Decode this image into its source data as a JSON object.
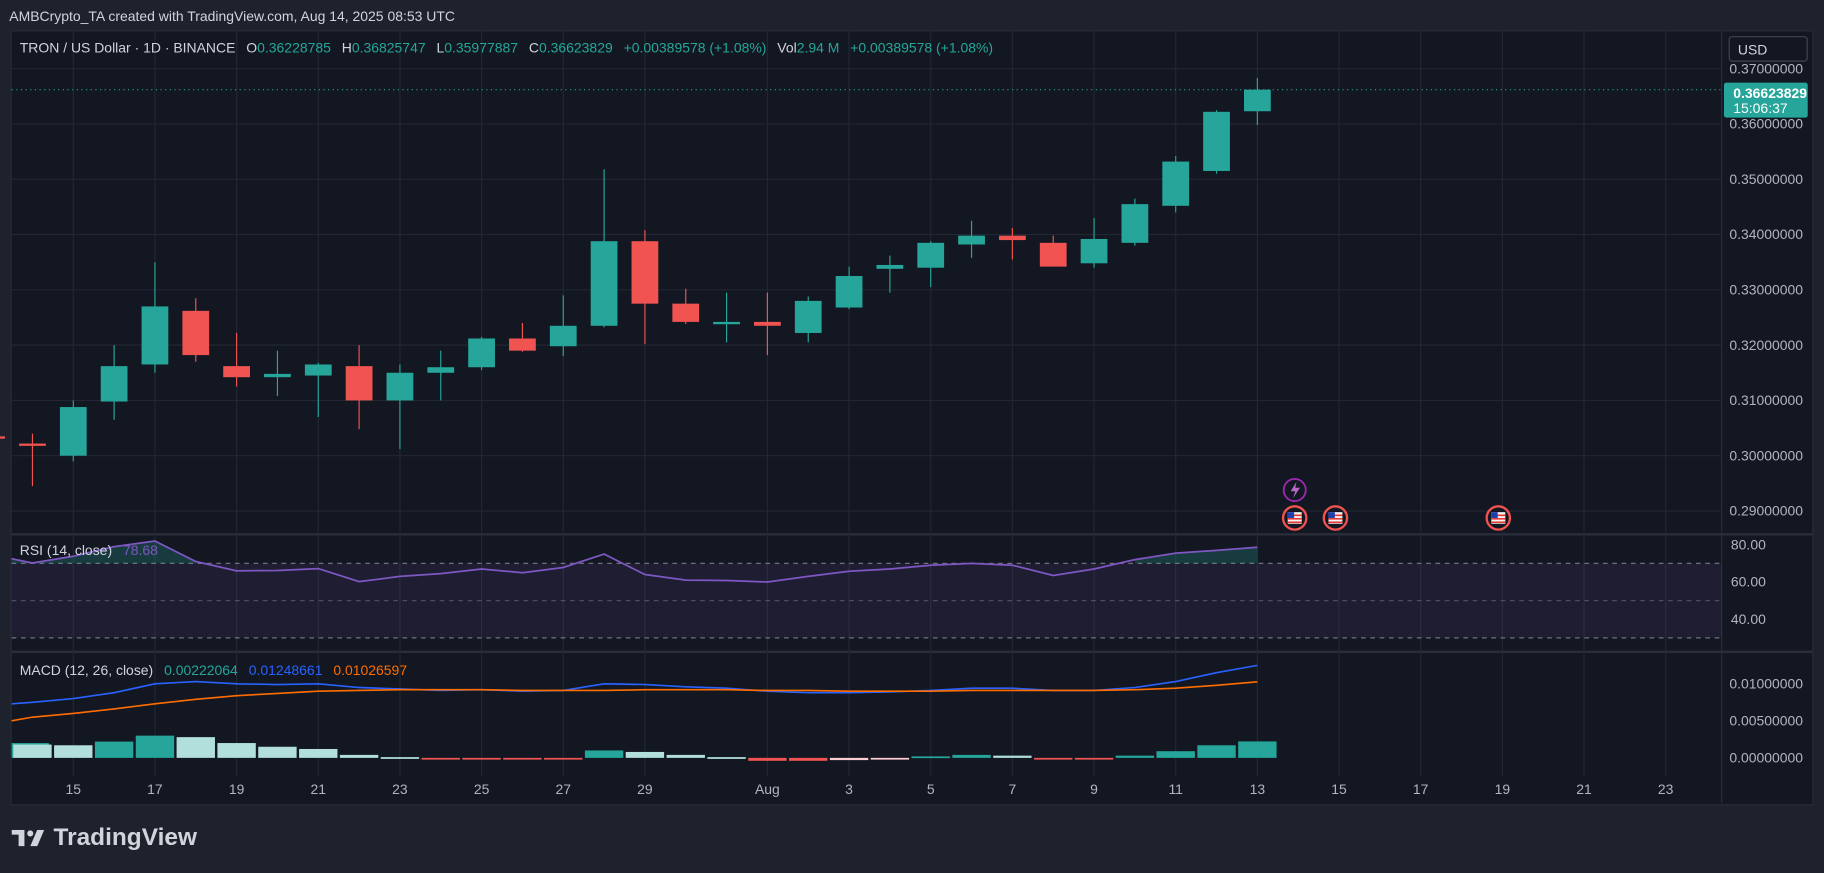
{
  "header_text": "AMBCrypto_TA created with TradingView.com, Aug 14, 2025 08:53 UTC",
  "main_legend": {
    "symbol": "TRON / US Dollar · 1D · BINANCE",
    "o_label": "O",
    "o": "0.36228785",
    "h_label": "H",
    "h": "0.36825747",
    "l_label": "L",
    "l": "0.35977887",
    "c_label": "C",
    "c": "0.36623829",
    "change": "+0.00389578 (+1.08%)",
    "vol_label": "Vol",
    "vol": "2.94 M",
    "vol_change": "+0.00389578 (+1.08%)"
  },
  "currency_button": "USD",
  "last_price_tag": {
    "price": "0.36623829",
    "countdown": "15:06:37"
  },
  "colors": {
    "up": "#26a69a",
    "down": "#f05350",
    "rsi": "#7e57c2",
    "macd": "#2962ff",
    "signal": "#ff6d00",
    "text": "#b2b5be",
    "bg": "#131722",
    "grid": "#232733"
  },
  "icons": [
    "us-flag-event-icon",
    "lightning-event-icon",
    "tradingview-logo-icon"
  ],
  "footer_logo_text": "TradingView",
  "rsi_legend": {
    "label": "RSI (14, close)",
    "value": "78.68"
  },
  "macd_legend": {
    "label": "MACD (12, 26, close)",
    "hist": "0.00222064",
    "macd": "0.01248661",
    "signal": "0.01026597"
  },
  "chart_data": [
    {
      "type": "candlestick",
      "title": "TRON / US Dollar · 1D · BINANCE",
      "ylim": [
        0.286,
        0.374
      ],
      "y_ticks": [
        "0.37000000",
        "0.36000000",
        "0.35000000",
        "0.34000000",
        "0.33000000",
        "0.32000000",
        "0.31000000",
        "0.30000000",
        "0.29000000"
      ],
      "x_ticks": [
        {
          "day": 15,
          "label": "15"
        },
        {
          "day": 17,
          "label": "17"
        },
        {
          "day": 19,
          "label": "19"
        },
        {
          "day": 21,
          "label": "21"
        },
        {
          "day": 23,
          "label": "23"
        },
        {
          "day": 25,
          "label": "25"
        },
        {
          "day": 27,
          "label": "27"
        },
        {
          "day": 29,
          "label": "29"
        },
        {
          "day": 32,
          "label": "Aug"
        },
        {
          "day": 34,
          "label": "3"
        },
        {
          "day": 36,
          "label": "5"
        },
        {
          "day": 38,
          "label": "7"
        },
        {
          "day": 40,
          "label": "9"
        },
        {
          "day": 42,
          "label": "11"
        },
        {
          "day": 44,
          "label": "13"
        },
        {
          "day": 46,
          "label": "15"
        },
        {
          "day": 48,
          "label": "17"
        },
        {
          "day": 50,
          "label": "19"
        },
        {
          "day": 52,
          "label": "21"
        },
        {
          "day": 54,
          "label": "23"
        }
      ],
      "candles": [
        {
          "d": "Jul 13",
          "day": 13,
          "o": 0.3035,
          "h": 0.3065,
          "l": 0.299,
          "c": 0.3032
        },
        {
          "d": "Jul 14",
          "day": 14,
          "o": 0.3022,
          "h": 0.304,
          "l": 0.2945,
          "c": 0.3018
        },
        {
          "d": "Jul 15",
          "day": 15,
          "o": 0.3,
          "h": 0.31,
          "l": 0.299,
          "c": 0.3088
        },
        {
          "d": "Jul 16",
          "day": 16,
          "o": 0.3098,
          "h": 0.32,
          "l": 0.3065,
          "c": 0.3162
        },
        {
          "d": "Jul 17",
          "day": 17,
          "o": 0.3165,
          "h": 0.335,
          "l": 0.315,
          "c": 0.327
        },
        {
          "d": "Jul 18",
          "day": 18,
          "o": 0.3262,
          "h": 0.3285,
          "l": 0.317,
          "c": 0.3182
        },
        {
          "d": "Jul 19",
          "day": 19,
          "o": 0.3162,
          "h": 0.3222,
          "l": 0.3125,
          "c": 0.3142
        },
        {
          "d": "Jul 20",
          "day": 20,
          "o": 0.3142,
          "h": 0.319,
          "l": 0.3108,
          "c": 0.3148
        },
        {
          "d": "Jul 21",
          "day": 21,
          "o": 0.3145,
          "h": 0.3168,
          "l": 0.307,
          "c": 0.3165
        },
        {
          "d": "Jul 22",
          "day": 22,
          "o": 0.3162,
          "h": 0.32,
          "l": 0.3048,
          "c": 0.31
        },
        {
          "d": "Jul 23",
          "day": 23,
          "o": 0.31,
          "h": 0.3165,
          "l": 0.3012,
          "c": 0.315
        },
        {
          "d": "Jul 24",
          "day": 24,
          "o": 0.315,
          "h": 0.319,
          "l": 0.31,
          "c": 0.316
        },
        {
          "d": "Jul 25",
          "day": 25,
          "o": 0.316,
          "h": 0.3215,
          "l": 0.3155,
          "c": 0.3212
        },
        {
          "d": "Jul 26",
          "day": 26,
          "o": 0.3212,
          "h": 0.324,
          "l": 0.3188,
          "c": 0.319
        },
        {
          "d": "Jul 27",
          "day": 27,
          "o": 0.3198,
          "h": 0.329,
          "l": 0.318,
          "c": 0.3235
        },
        {
          "d": "Jul 28",
          "day": 28,
          "o": 0.3235,
          "h": 0.3518,
          "l": 0.3232,
          "c": 0.3388
        },
        {
          "d": "Jul 29",
          "day": 29,
          "o": 0.3388,
          "h": 0.3408,
          "l": 0.3202,
          "c": 0.3275
        },
        {
          "d": "Jul 30",
          "day": 30,
          "o": 0.3275,
          "h": 0.3302,
          "l": 0.3238,
          "c": 0.3242
        },
        {
          "d": "Jul 31",
          "day": 31,
          "o": 0.3242,
          "h": 0.3295,
          "l": 0.3205,
          "c": 0.3242
        },
        {
          "d": "Aug 1",
          "day": 32,
          "o": 0.3242,
          "h": 0.3295,
          "l": 0.3182,
          "c": 0.3235
        },
        {
          "d": "Aug 2",
          "day": 33,
          "o": 0.3222,
          "h": 0.3288,
          "l": 0.3205,
          "c": 0.328
        },
        {
          "d": "Aug 3",
          "day": 34,
          "o": 0.3268,
          "h": 0.3342,
          "l": 0.3265,
          "c": 0.3325
        },
        {
          "d": "Aug 4",
          "day": 35,
          "o": 0.3338,
          "h": 0.3362,
          "l": 0.3295,
          "c": 0.3345
        },
        {
          "d": "Aug 5",
          "day": 36,
          "o": 0.334,
          "h": 0.3388,
          "l": 0.3305,
          "c": 0.3385
        },
        {
          "d": "Aug 6",
          "day": 37,
          "o": 0.3382,
          "h": 0.3425,
          "l": 0.3358,
          "c": 0.3398
        },
        {
          "d": "Aug 7",
          "day": 38,
          "o": 0.3398,
          "h": 0.3412,
          "l": 0.3355,
          "c": 0.339
        },
        {
          "d": "Aug 8",
          "day": 39,
          "o": 0.3385,
          "h": 0.3398,
          "l": 0.3345,
          "c": 0.3342
        },
        {
          "d": "Aug 9",
          "day": 40,
          "o": 0.3348,
          "h": 0.343,
          "l": 0.334,
          "c": 0.3392
        },
        {
          "d": "Aug 10",
          "day": 41,
          "o": 0.3385,
          "h": 0.3465,
          "l": 0.338,
          "c": 0.3455
        },
        {
          "d": "Aug 11",
          "day": 42,
          "o": 0.3452,
          "h": 0.3542,
          "l": 0.344,
          "c": 0.3532
        },
        {
          "d": "Aug 12",
          "day": 43,
          "o": 0.3515,
          "h": 0.3625,
          "l": 0.351,
          "c": 0.3622
        },
        {
          "d": "Aug 13",
          "day": 44,
          "o": 0.3623,
          "h": 0.3683,
          "l": 0.3598,
          "c": 0.3662
        }
      ]
    },
    {
      "type": "line",
      "title": "RSI (14, close)",
      "ylim": [
        25,
        85
      ],
      "y_ticks": [
        "80.00",
        "60.00",
        "40.00"
      ],
      "bands": [
        70,
        50,
        30
      ],
      "series": [
        {
          "name": "RSI (14, close)",
          "values": [
            72.5,
            70.2,
            73.8,
            79.0,
            82.0,
            71.0,
            66.0,
            66.2,
            67.2,
            60.2,
            63.0,
            64.5,
            67.0,
            65.0,
            67.8,
            75.0,
            64.0,
            61.0,
            60.8,
            60.0,
            63.0,
            65.8,
            67.0,
            69.0,
            70.0,
            69.0,
            63.5,
            67.0,
            72.0,
            75.5,
            77.0,
            78.68
          ]
        }
      ]
    },
    {
      "type": "bar+line",
      "title": "MACD (12, 26, close)",
      "ylim": [
        -0.0025,
        0.014
      ],
      "y_ticks": [
        "0.01000000",
        "0.00500000",
        "0.00000000"
      ],
      "histogram": [
        0.002,
        0.0018,
        0.0017,
        0.0022,
        0.003,
        0.0028,
        0.002,
        0.0015,
        0.0012,
        0.0004,
        0.0001,
        -0.0001,
        -0.0002,
        -0.0002,
        -0.0002,
        0.001,
        0.0008,
        0.0004,
        0.0001,
        -0.0004,
        -0.0004,
        -0.0003,
        -0.0002,
        0.0002,
        0.0004,
        0.0003,
        -0.0001,
        -0.0002,
        0.0003,
        0.0009,
        0.0017,
        0.00222064
      ],
      "series": [
        {
          "name": "MACD",
          "values": [
            0.0073,
            0.0075,
            0.008,
            0.0088,
            0.01,
            0.0103,
            0.01,
            0.0099,
            0.01,
            0.0095,
            0.0093,
            0.0091,
            0.0092,
            0.009,
            0.0091,
            0.01,
            0.0099,
            0.0096,
            0.0094,
            0.009,
            0.0088,
            0.0088,
            0.0089,
            0.0091,
            0.0094,
            0.0094,
            0.0091,
            0.0091,
            0.0095,
            0.0103,
            0.0115,
            0.01248661
          ]
        },
        {
          "name": "Signal",
          "values": [
            0.005,
            0.0055,
            0.006,
            0.0066,
            0.0073,
            0.0079,
            0.0084,
            0.0087,
            0.009,
            0.0091,
            0.0092,
            0.0092,
            0.0092,
            0.0091,
            0.0091,
            0.0091,
            0.0092,
            0.0092,
            0.0092,
            0.0091,
            0.0091,
            0.009,
            0.009,
            0.009,
            0.0091,
            0.0091,
            0.0091,
            0.0091,
            0.0092,
            0.0094,
            0.0098,
            0.01026597
          ]
        }
      ]
    }
  ]
}
